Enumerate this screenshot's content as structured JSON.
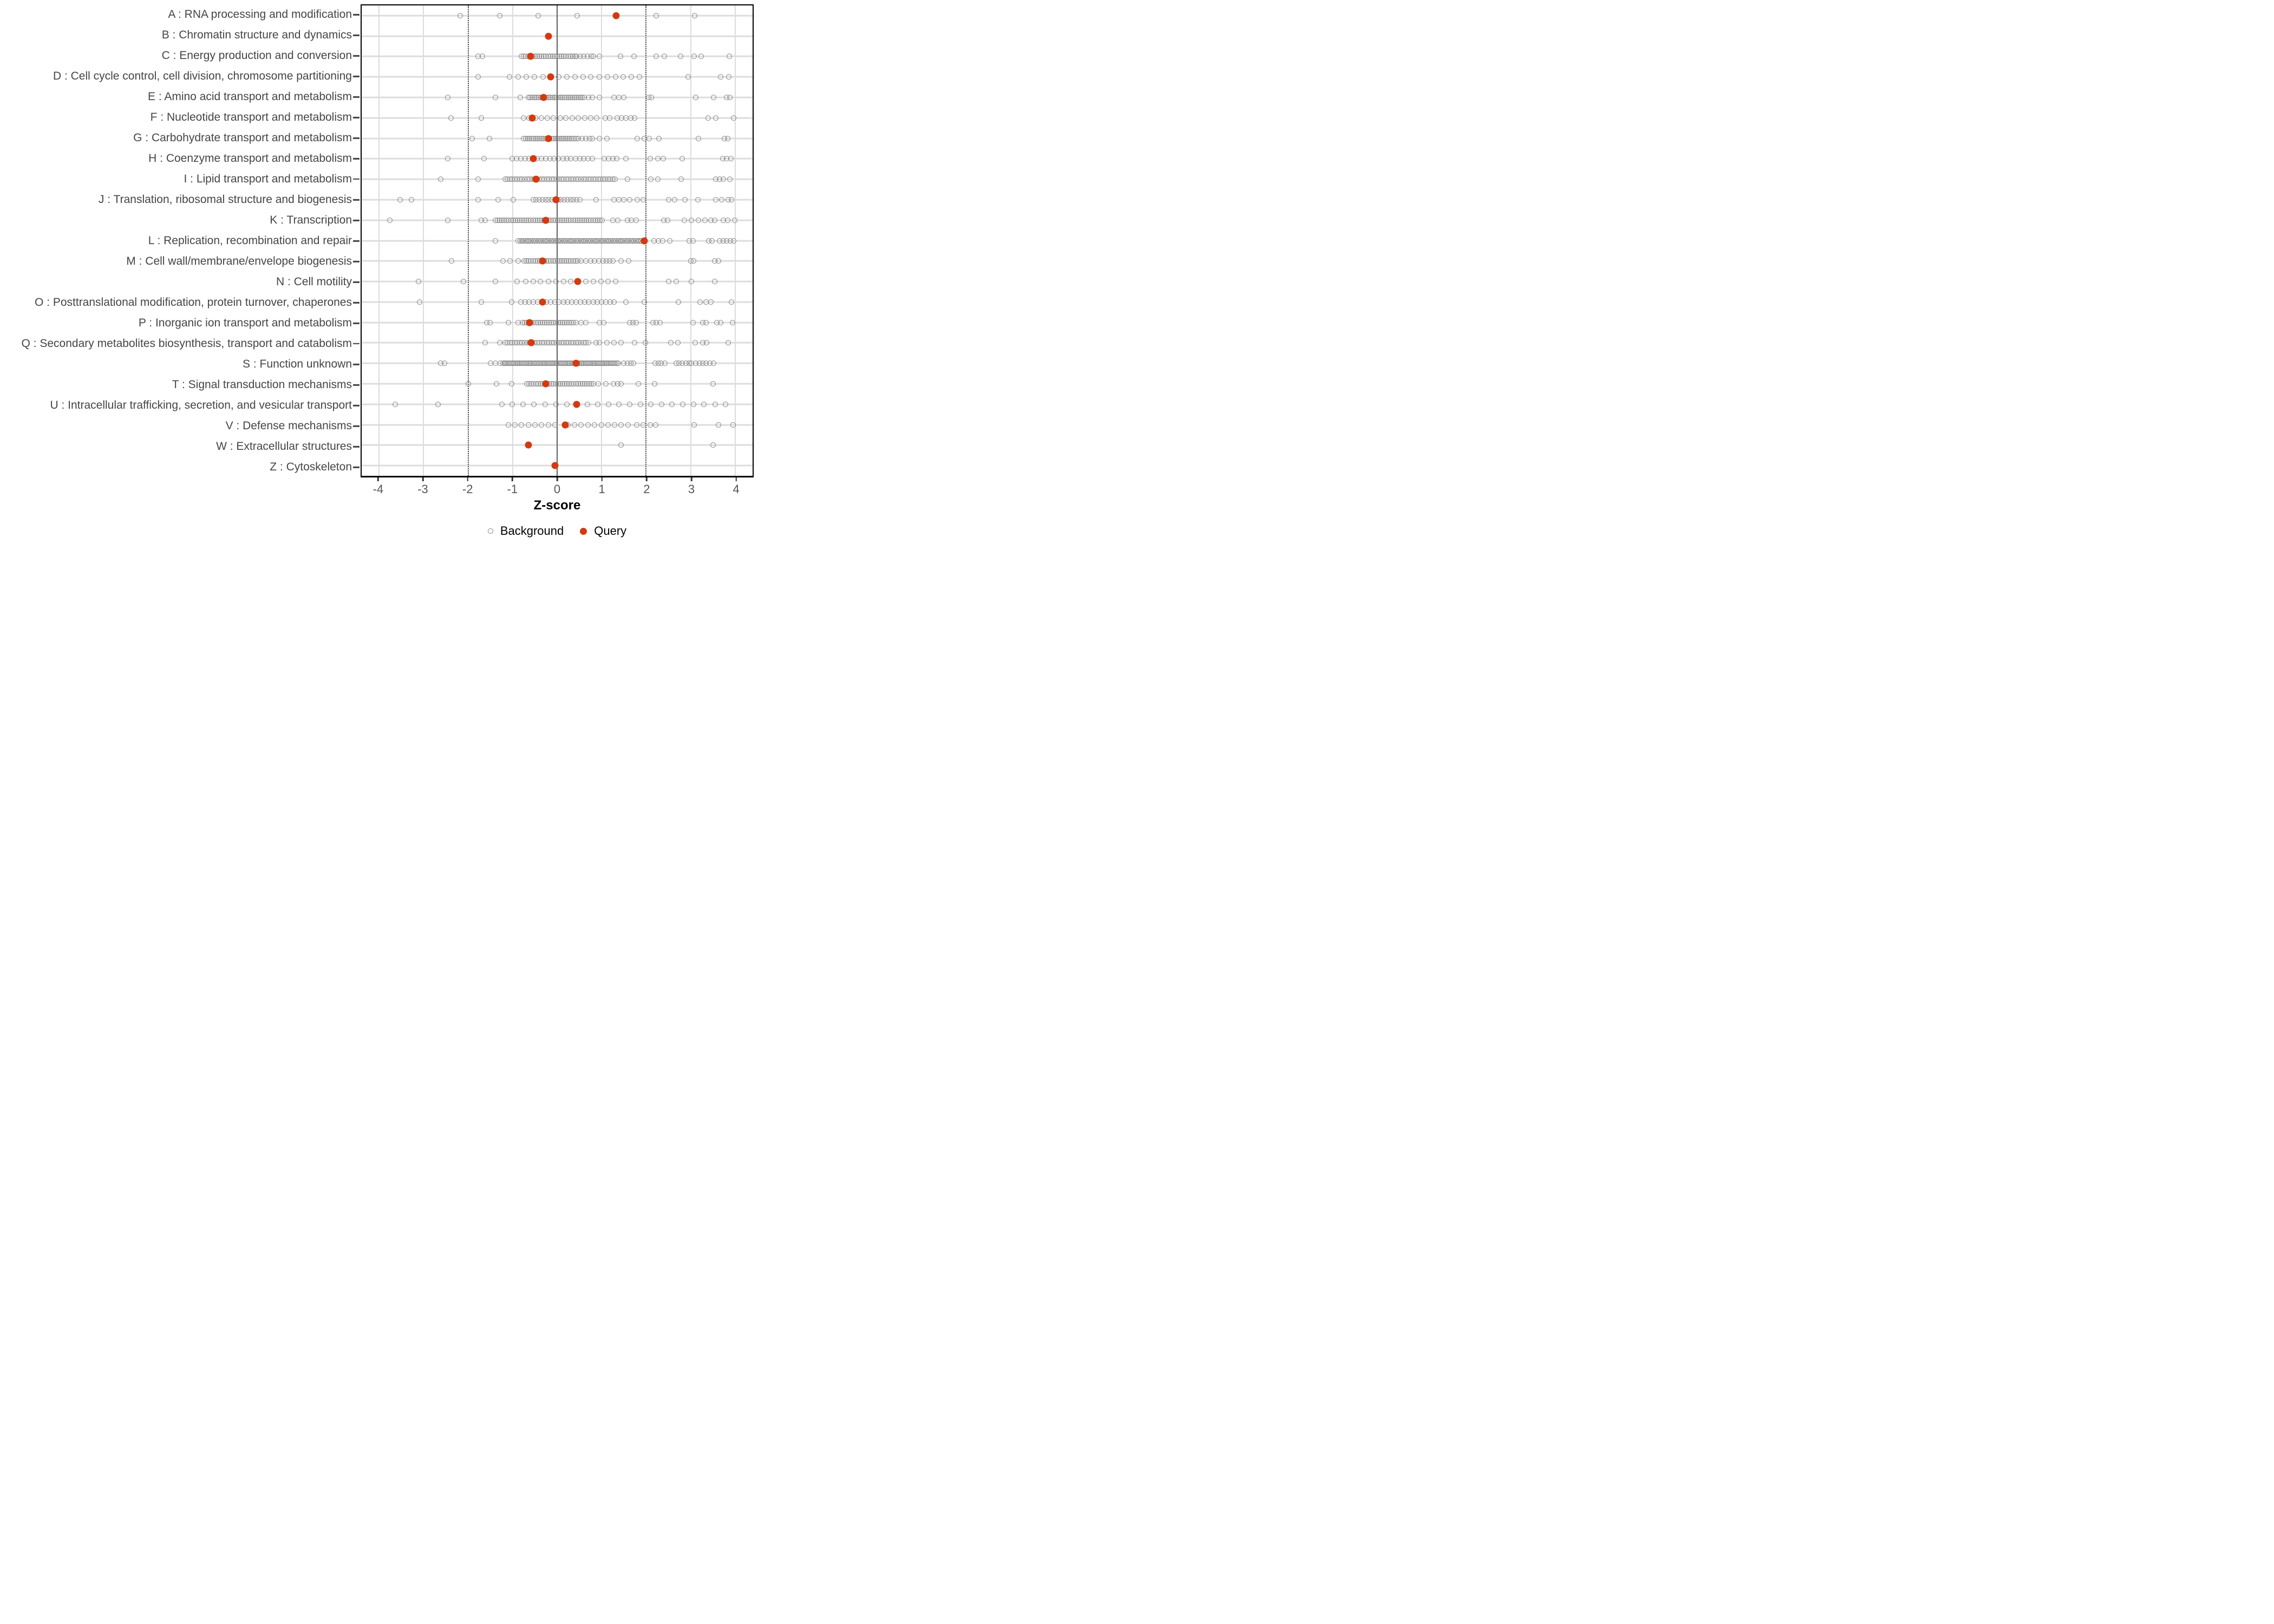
{
  "figure": {
    "xlabel": "Z-score",
    "legend": [
      {
        "label": "Background",
        "marker": "open-circle"
      },
      {
        "label": "Query",
        "marker": "filled-dot"
      }
    ],
    "colors": {
      "query": "#d43a10",
      "background_stroke": "#838383",
      "gridline": "#dcdcdc",
      "zero_line": "#5f5f5f",
      "threshold_line": "#4d4d4d",
      "axis_tick_text": "#555555",
      "category_text": "#454545",
      "panel_border": "#000000"
    }
  },
  "chart_data": {
    "type": "scatter",
    "title": "",
    "xlabel": "Z-score",
    "ylabel": "",
    "xlim": [
      -4.4,
      4.4
    ],
    "x_ticks": [
      -4,
      -3,
      -2,
      -1,
      0,
      1,
      2,
      3,
      4
    ],
    "zero_line": 0,
    "threshold_lines": [
      -2,
      2
    ],
    "grid": true,
    "legend_position": "bottom",
    "series_names": [
      "Background",
      "Query"
    ],
    "categories": [
      {
        "id": "A",
        "label": "A : RNA processing and modification",
        "query": 1.33,
        "background": [
          -2.18,
          -1.29,
          -0.42,
          0.45,
          2.22,
          3.09
        ],
        "background_bands": []
      },
      {
        "id": "B",
        "label": "B : Chromatin structure and dynamics",
        "query": -0.19,
        "background": [],
        "background_bands": []
      },
      {
        "id": "C",
        "label": "C : Energy production and conversion",
        "query": -0.59,
        "background": [
          -1.78,
          -1.68,
          0.44,
          0.52,
          0.6,
          0.68,
          0.77,
          0.81,
          0.95,
          1.42,
          1.73,
          2.23,
          2.41,
          2.77,
          3.08,
          3.23,
          3.87
        ],
        "background_bands": [
          {
            "from": -0.8,
            "to": 0.4,
            "step": 0.05
          }
        ]
      },
      {
        "id": "D",
        "label": "D : Cell cycle control, cell division, chromosome partitioning",
        "query": -0.15,
        "background": [
          -1.78,
          -1.07,
          -0.87,
          -0.69,
          -0.51,
          -0.32,
          0.04,
          0.22,
          0.4,
          0.58,
          0.76,
          0.95,
          1.13,
          1.31,
          1.49,
          1.67,
          1.85,
          2.94,
          3.67,
          3.85
        ],
        "background_bands": []
      },
      {
        "id": "E",
        "label": "E : Amino acid transport and metabolism",
        "query": -0.3,
        "background": [
          -2.46,
          -1.39,
          -0.83,
          0.7,
          0.79,
          0.95,
          1.28,
          1.39,
          1.5,
          2.05,
          2.12,
          3.11,
          3.51,
          3.81,
          3.88
        ],
        "background_bands": [
          {
            "from": -0.65,
            "to": 0.63,
            "step": 0.045
          }
        ]
      },
      {
        "id": "F",
        "label": "F : Nucleotide transport and metabolism",
        "query": -0.56,
        "background": [
          -2.38,
          -1.7,
          -0.76,
          -0.63,
          -0.49,
          -0.35,
          -0.22,
          -0.08,
          0.07,
          0.2,
          0.34,
          0.48,
          0.62,
          0.75,
          0.89,
          1.08,
          1.18,
          1.35,
          1.45,
          1.55,
          1.65,
          1.74,
          3.39,
          3.57,
          3.97
        ],
        "background_bands": []
      },
      {
        "id": "G",
        "label": "G : Carbohydrate transport and metabolism",
        "query": -0.2,
        "background": [
          -1.91,
          -1.52,
          0.47,
          0.56,
          0.65,
          0.73,
          0.79,
          0.95,
          1.12,
          1.8,
          1.96,
          2.07,
          2.29,
          3.18,
          3.76,
          3.83
        ],
        "background_bands": [
          {
            "from": -0.75,
            "to": 0.42,
            "step": 0.045
          }
        ]
      },
      {
        "id": "H",
        "label": "H : Coenzyme transport and metabolism",
        "query": -0.54,
        "background": [
          -2.46,
          -1.64,
          -1.01,
          -0.91,
          -0.82,
          -0.72,
          -0.63,
          -0.45,
          -0.35,
          -0.26,
          -0.16,
          -0.07,
          0.03,
          0.13,
          0.22,
          0.31,
          0.41,
          0.51,
          0.6,
          0.69,
          0.79,
          1.06,
          1.16,
          1.25,
          1.34,
          1.55,
          2.09,
          2.26,
          2.38,
          2.81,
          3.72,
          3.81,
          3.9
        ],
        "background_bands": []
      },
      {
        "id": "I",
        "label": "I : Lipid transport and metabolism",
        "query": -0.47,
        "background": [
          -2.61,
          -1.77,
          1.58,
          2.1,
          2.26,
          2.78,
          3.57,
          3.65,
          3.73,
          3.88
        ],
        "background_bands": [
          {
            "from": -1.17,
            "to": 1.33,
            "step": 0.055
          }
        ]
      },
      {
        "id": "J",
        "label": "J : Translation, ribosomal structure and biogenesis",
        "query": -0.02,
        "background": [
          -3.53,
          -3.27,
          -1.77,
          -1.33,
          -0.98,
          0.87,
          1.28,
          1.39,
          1.5,
          1.63,
          1.8,
          1.93,
          2.5,
          2.64,
          2.87,
          3.16,
          3.57,
          3.7,
          3.84,
          3.92
        ],
        "background_bands": [
          {
            "from": -0.54,
            "to": 0.54,
            "step": 0.07
          }
        ]
      },
      {
        "id": "K",
        "label": "K : Transcription",
        "query": -0.25,
        "background": [
          -3.76,
          -2.46,
          -1.7,
          -1.62,
          1.25,
          1.36,
          1.58,
          1.67,
          1.77,
          2.4,
          2.48,
          2.86,
          3.02,
          3.18,
          3.32,
          3.46,
          3.54,
          3.74,
          3.83,
          3.99
        ],
        "background_bands": [
          {
            "from": -1.39,
            "to": 1.01,
            "step": 0.05
          }
        ]
      },
      {
        "id": "L",
        "label": "L : Replication, recombination and repair",
        "query": 1.96,
        "background": [
          -1.39,
          2.18,
          2.28,
          2.37,
          2.53,
          2.97,
          3.05,
          3.4,
          3.48,
          3.65,
          3.73,
          3.81,
          3.89,
          3.97
        ],
        "background_bands": [
          {
            "from": -0.87,
            "to": 1.93,
            "step": 0.04
          }
        ]
      },
      {
        "id": "M",
        "label": "M : Cell wall/membrane/envelope biogenesis",
        "query": -0.33,
        "background": [
          -2.37,
          -1.22,
          -1.06,
          -0.87,
          0.54,
          0.64,
          0.76,
          0.84,
          0.94,
          1.03,
          1.11,
          1.18,
          1.25,
          1.44,
          1.61,
          3.01,
          3.07,
          3.54,
          3.62
        ],
        "background_bands": [
          {
            "from": -0.74,
            "to": 0.46,
            "step": 0.05
          }
        ]
      },
      {
        "id": "N",
        "label": "N : Cell motility",
        "query": 0.46,
        "background": [
          -3.12,
          -2.1,
          -1.39,
          -0.9,
          -0.71,
          -0.54,
          -0.38,
          -0.19,
          -0.03,
          0.14,
          0.3,
          0.65,
          0.82,
          0.98,
          1.14,
          1.31,
          2.5,
          2.67,
          3.02,
          3.54
        ],
        "background_bands": []
      },
      {
        "id": "O",
        "label": "O : Posttranslational modification, protein turnover, chaperones",
        "query": -0.33,
        "background": [
          -3.09,
          -1.7,
          -1.02,
          -0.82,
          -0.72,
          -0.63,
          -0.53,
          -0.44,
          -0.24,
          -0.15,
          -0.05,
          0.04,
          0.14,
          0.23,
          0.33,
          0.42,
          0.52,
          0.62,
          0.71,
          0.81,
          0.9,
          1.0,
          1.09,
          1.19,
          1.28,
          1.55,
          1.96,
          2.72,
          3.21,
          3.34,
          3.46,
          3.92
        ],
        "background_bands": []
      },
      {
        "id": "P",
        "label": "P : Inorganic ion transport and metabolism",
        "query": -0.62,
        "background": [
          -1.58,
          -1.51,
          -1.09,
          -0.88,
          0.53,
          0.64,
          0.95,
          1.05,
          1.63,
          1.7,
          1.78,
          2.15,
          2.23,
          2.31,
          3.05,
          3.27,
          3.35,
          3.59,
          3.67,
          3.94
        ],
        "background_bands": [
          {
            "from": -0.78,
            "to": 0.46,
            "step": 0.05
          }
        ]
      },
      {
        "id": "Q",
        "label": "Q : Secondary metabolites biosynthesis, transport and catabolism",
        "query": -0.58,
        "background": [
          -1.62,
          -1.29,
          0.87,
          0.95,
          1.12,
          1.28,
          1.43,
          1.74,
          1.98,
          2.55,
          2.71,
          3.1,
          3.27,
          3.36,
          3.84
        ],
        "background_bands": [
          {
            "from": -1.17,
            "to": 0.73,
            "step": 0.055
          }
        ]
      },
      {
        "id": "S",
        "label": "S : Function unknown",
        "query": 0.42,
        "background": [
          -2.61,
          -2.53,
          -1.5,
          -1.39,
          -1.28,
          1.5,
          1.58,
          1.65,
          1.71,
          2.2,
          2.27,
          2.34,
          2.42,
          2.67,
          2.74,
          2.81,
          2.9,
          2.97,
          3.02,
          3.12,
          3.2,
          3.27,
          3.35,
          3.43,
          3.51
        ],
        "background_bands": [
          {
            "from": -1.22,
            "to": 1.39,
            "step": 0.035
          }
        ]
      },
      {
        "id": "T",
        "label": "T : Signal transduction mechanisms",
        "query": -0.25,
        "background": [
          -2.0,
          -1.36,
          -1.02,
          0.93,
          1.09,
          1.27,
          1.36,
          1.44,
          1.83,
          2.19,
          3.5
        ],
        "background_bands": [
          {
            "from": -0.68,
            "to": 0.84,
            "step": 0.05
          }
        ]
      },
      {
        "id": "U",
        "label": "U : Intracellular trafficking, secretion, and vesicular transport",
        "query": 0.44,
        "background": [
          -3.64,
          -2.68,
          -1.24,
          -1.01,
          -0.77,
          -0.52,
          -0.27,
          -0.03,
          0.22,
          0.68,
          0.91,
          1.15,
          1.39,
          1.63,
          1.87,
          2.1,
          2.35,
          2.58,
          2.82,
          3.07,
          3.3,
          3.55,
          3.78
        ],
        "background_bands": []
      },
      {
        "id": "V",
        "label": "V : Defense mechanisms",
        "query": 0.18,
        "background": [
          -1.09,
          -0.95,
          -0.8,
          -0.65,
          -0.5,
          -0.35,
          -0.2,
          -0.05,
          0.24,
          0.39,
          0.54,
          0.69,
          0.84,
          1.0,
          1.14,
          1.29,
          1.44,
          1.59,
          1.79,
          1.93,
          2.09,
          2.21,
          3.08,
          3.62,
          3.95
        ],
        "background_bands": []
      },
      {
        "id": "W",
        "label": "W : Extracellular structures",
        "query": -0.65,
        "background": [
          1.43,
          3.5
        ],
        "background_bands": []
      },
      {
        "id": "Z",
        "label": "Z : Cytoskeleton",
        "query": -0.05,
        "background": [],
        "background_bands": []
      }
    ]
  }
}
